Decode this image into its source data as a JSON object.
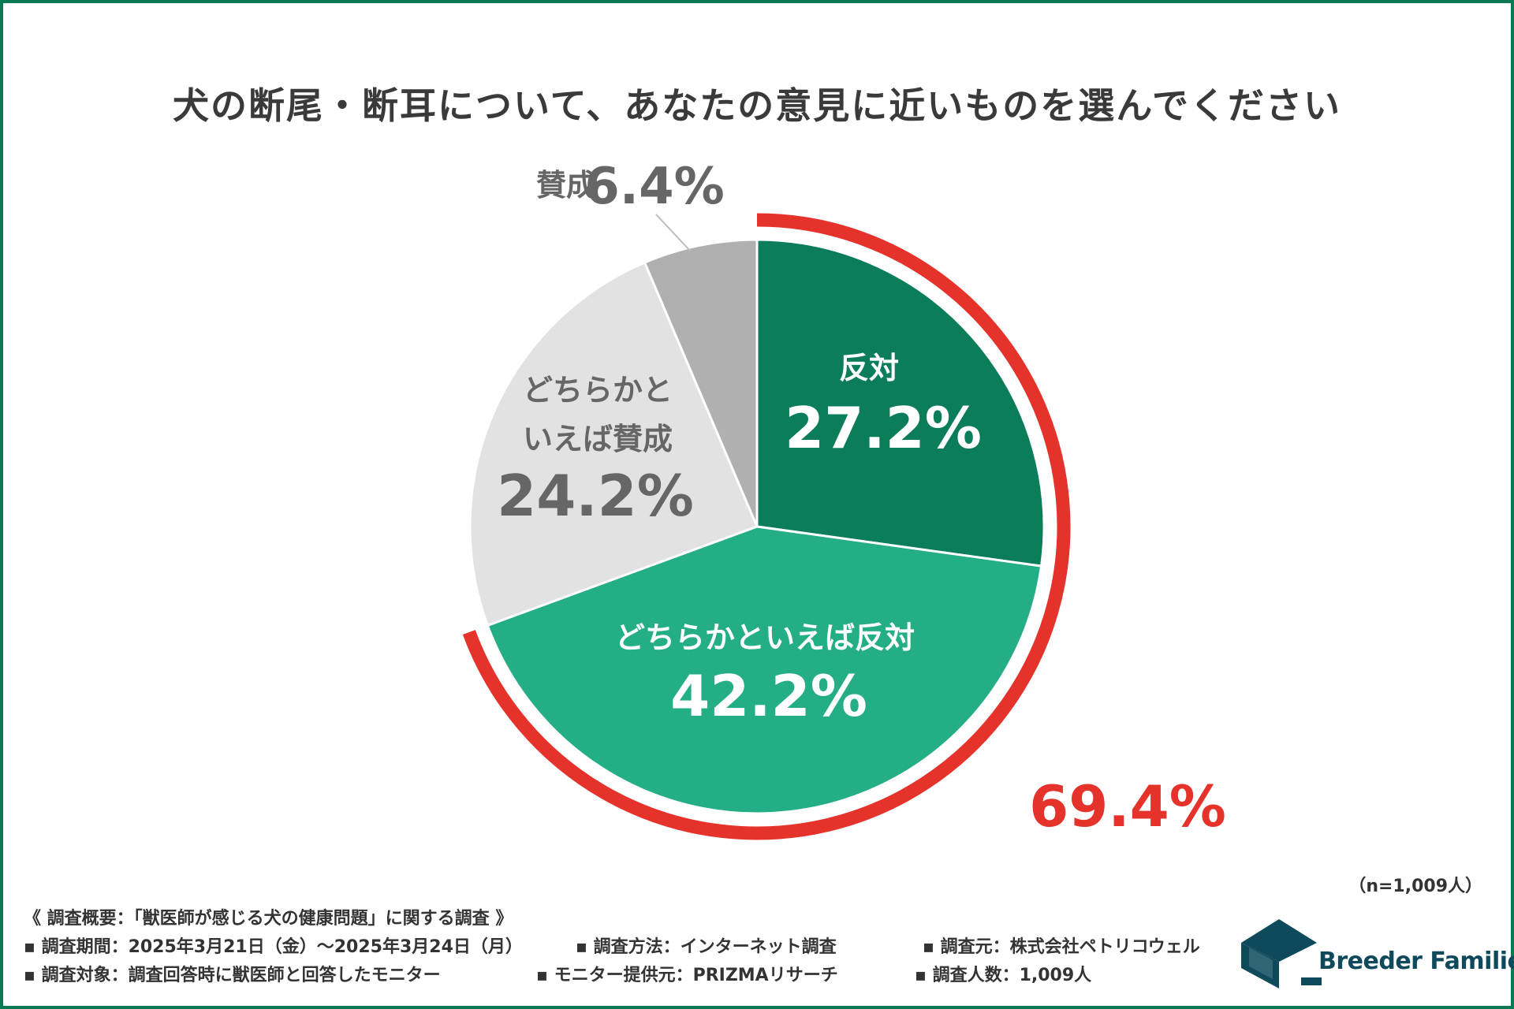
{
  "title": "犬の断尾・断耳について、あなたの意見に近いものを選んでください",
  "chart_data": {
    "type": "pie",
    "title": "犬の断尾・断耳について、あなたの意見に近いものを選んでください",
    "slices": [
      {
        "label_lines": [
          "反対"
        ],
        "value": 27.2,
        "value_label": "27.2%",
        "color": "#0b7d5a",
        "text_color": "#ffffff"
      },
      {
        "label_lines": [
          "どちらかといえば反対"
        ],
        "value": 42.2,
        "value_label": "42.2%",
        "color": "#24ae86",
        "text_color": "#ffffff"
      },
      {
        "label_lines": [
          "どちらかと",
          "いえば賛成"
        ],
        "value": 24.2,
        "value_label": "24.2%",
        "color": "#e2e2e2",
        "text_color": "#666666"
      },
      {
        "label_lines": [
          "賛成"
        ],
        "value": 6.4,
        "value_label": "6.4%",
        "color": "#b0b0b0",
        "text_color": "#666666"
      }
    ],
    "highlight": {
      "value": 69.4,
      "label": "69.4%",
      "color": "#e5322b",
      "covers": [
        "反対",
        "どちらかといえば反対"
      ]
    }
  },
  "sample_size": "（n=1,009人）",
  "survey": {
    "heading": "《 調査概要：「獣医師が感じる犬の健康問題」に関する調査 》",
    "period": "▪ 調査期間：2025年3月21日（金）〜2025年3月24日（月）",
    "method": "▪ 調査方法：インターネット調査",
    "source": "▪ 調査元：株式会社ペトリコウェル",
    "target": "▪ 調査対象：調査回答時に獣医師と回答したモニター",
    "provider": "▪ モニター提供元：PRIZMAリサーチ",
    "count": "▪ 調査人数：1,009人"
  },
  "logo": {
    "text": "Breeder Families",
    "color": "#0e4a5c"
  }
}
